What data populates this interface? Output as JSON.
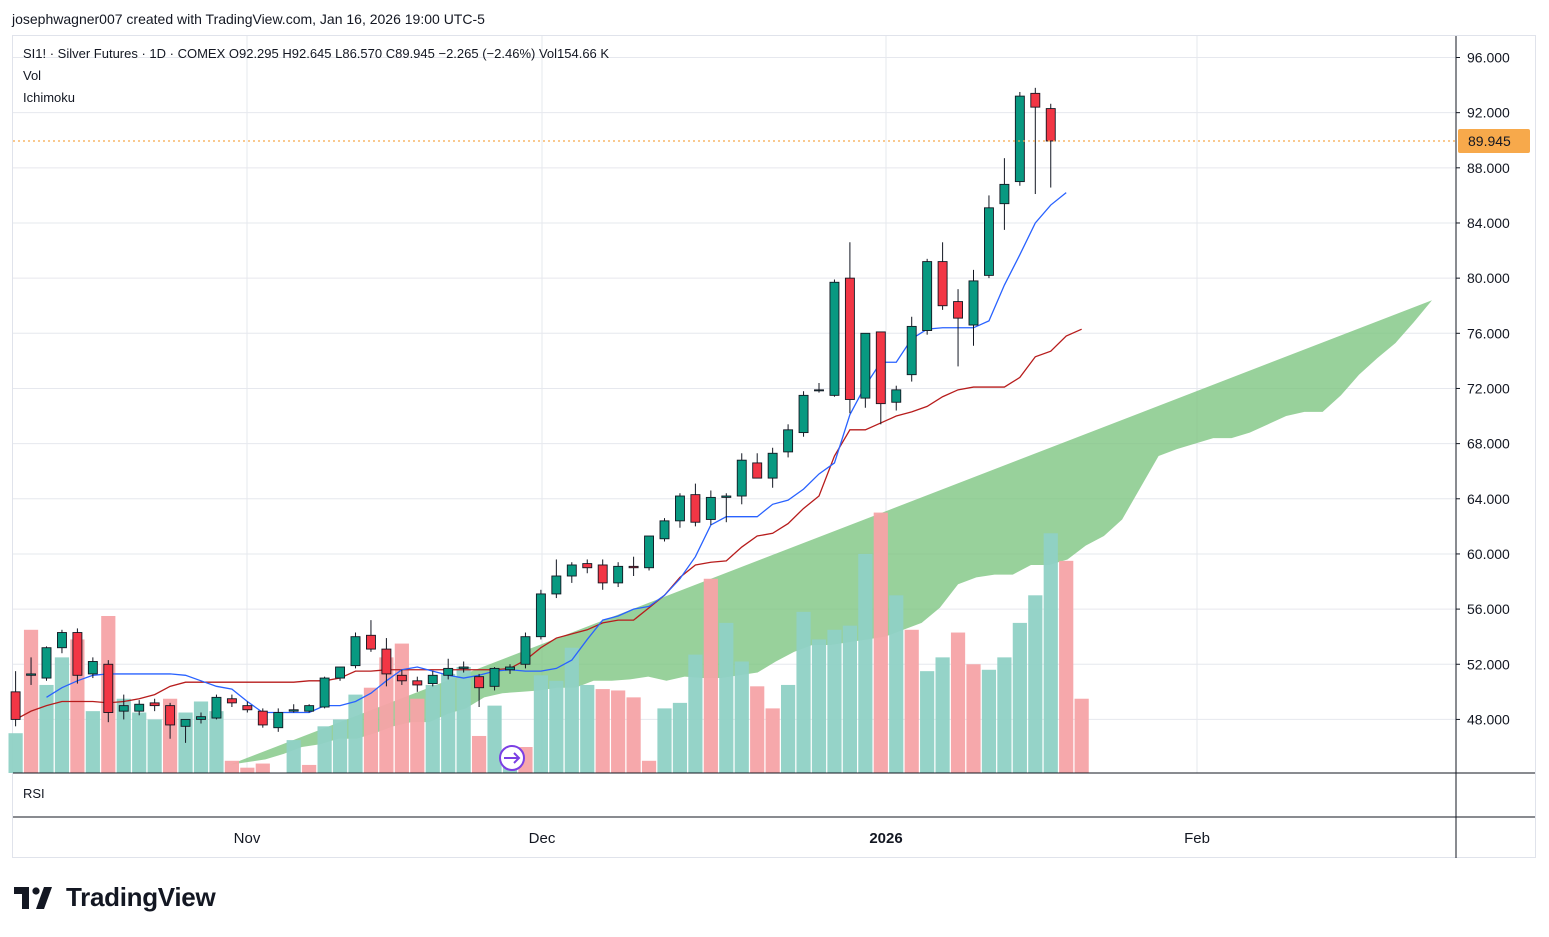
{
  "header": {
    "attribution": "josephwagner007 created with TradingView.com, Jan 16, 2026 19:00 UTC-5"
  },
  "legend": {
    "title_line": "SI1! · Silver Futures · 1D · COMEX  O92.295  H92.645  L86.570  C89.945  −2.265 (−2.46%)  Vol154.66 K",
    "vol": "Vol",
    "ichimoku": "Ichimoku",
    "rsi": "RSI"
  },
  "brand": {
    "name": "TradingView"
  },
  "colors": {
    "up": "#089981",
    "down": "#f23645",
    "vol_up": "#8fd1c5",
    "vol_down": "#f5a3a6",
    "conversion": "#2962ff",
    "base": "#b71c1c",
    "cloud": "#7bc47f",
    "last_price": "#f7a94b"
  },
  "chart_data": {
    "type": "candlestick",
    "symbol": "SI1!",
    "name": "Silver Futures",
    "interval": "1D",
    "exchange": "COMEX",
    "last_price": "89.945",
    "y_ticks": [
      "96.000",
      "92.000",
      "88.000",
      "84.000",
      "80.000",
      "76.000",
      "72.000",
      "68.000",
      "64.000",
      "60.000",
      "56.000",
      "52.000",
      "48.000"
    ],
    "x_ticks": [
      "Nov",
      "Dec",
      "2026",
      "Feb"
    ],
    "ylim": [
      44.5,
      97
    ],
    "candles": [
      [
        50,
        51.5,
        47.5,
        48
      ],
      [
        51.2,
        52.5,
        50.5,
        51.3
      ],
      [
        51,
        53.3,
        50.8,
        53.2
      ],
      [
        53.2,
        54.5,
        52.8,
        54.3
      ],
      [
        54.3,
        54.6,
        50.6,
        51.2
      ],
      [
        51.3,
        52.5,
        51,
        52.2
      ],
      [
        52,
        52.3,
        47.8,
        48.5
      ],
      [
        48.6,
        49.8,
        48,
        49
      ],
      [
        48.6,
        49.4,
        48.3,
        49.1
      ],
      [
        49.2,
        49.5,
        48.6,
        49
      ],
      [
        49,
        49.2,
        46.6,
        47.6
      ],
      [
        47.5,
        48,
        46.3,
        48
      ],
      [
        48,
        48.5,
        47.7,
        48.2
      ],
      [
        48.1,
        49.8,
        48,
        49.6
      ],
      [
        49.5,
        49.8,
        48.9,
        49.2
      ],
      [
        49,
        49.3,
        48.5,
        48.7
      ],
      [
        48.6,
        48.8,
        47.4,
        47.6
      ],
      [
        47.4,
        48.8,
        47.1,
        48.5
      ],
      [
        48.6,
        49.1,
        48.5,
        48.7
      ],
      [
        48.6,
        49.1,
        48.5,
        49
      ],
      [
        48.9,
        51.1,
        48.8,
        51
      ],
      [
        51,
        51.8,
        50.8,
        51.8
      ],
      [
        51.9,
        54.3,
        51.7,
        54
      ],
      [
        54.1,
        55.2,
        52.9,
        53.1
      ],
      [
        53.1,
        53.9,
        50.4,
        51.3
      ],
      [
        51.2,
        51.6,
        50.5,
        50.8
      ],
      [
        50.8,
        51.1,
        50,
        50.5
      ],
      [
        50.6,
        51.5,
        50.4,
        51.2
      ],
      [
        51.2,
        52.4,
        50.9,
        51.7
      ],
      [
        51.7,
        52.2,
        51.4,
        51.8
      ],
      [
        51.1,
        51.3,
        48.9,
        50.3
      ],
      [
        50.4,
        51.8,
        50.1,
        51.7
      ],
      [
        51.6,
        52,
        51.3,
        51.8
      ],
      [
        52,
        54.3,
        51.7,
        54
      ],
      [
        54,
        57.4,
        53.8,
        57.1
      ],
      [
        57.1,
        59.6,
        56.8,
        58.4
      ],
      [
        58.4,
        59.4,
        57.9,
        59.2
      ],
      [
        59.3,
        59.6,
        58.6,
        59
      ],
      [
        59.2,
        59.6,
        57.4,
        57.9
      ],
      [
        57.9,
        59.4,
        57.6,
        59.1
      ],
      [
        59.1,
        59.8,
        58.4,
        59
      ],
      [
        59,
        61.3,
        58.8,
        61.3
      ],
      [
        61.1,
        62.6,
        60.9,
        62.4
      ],
      [
        62.4,
        64.4,
        61.9,
        64.2
      ],
      [
        64.3,
        65.1,
        62,
        62.3
      ],
      [
        62.5,
        64.6,
        62.1,
        64.1
      ],
      [
        64.1,
        64.4,
        62.3,
        64.2
      ],
      [
        64.2,
        67.3,
        63.6,
        66.8
      ],
      [
        66.6,
        67.3,
        65.5,
        65.5
      ],
      [
        65.5,
        67.7,
        64.8,
        67.3
      ],
      [
        67.4,
        69.4,
        67,
        69
      ],
      [
        68.8,
        71.8,
        68.5,
        71.5
      ],
      [
        71.9,
        72.4,
        71.7,
        71.9
      ],
      [
        71.5,
        79.9,
        71.4,
        79.7
      ],
      [
        80,
        82.6,
        70.2,
        71.2
      ],
      [
        71.3,
        76,
        70.6,
        76
      ],
      [
        76.1,
        76.1,
        69.4,
        70.9
      ],
      [
        71,
        72.2,
        70.4,
        71.9
      ],
      [
        73,
        77.2,
        72.5,
        76.5
      ],
      [
        76.2,
        81.4,
        75.9,
        81.2
      ],
      [
        81.2,
        82.6,
        77.7,
        78
      ],
      [
        78.3,
        79.2,
        73.6,
        77.1
      ],
      [
        76.6,
        80.6,
        75.1,
        79.8
      ],
      [
        80.2,
        86,
        80,
        85.1
      ],
      [
        85.4,
        88.7,
        83.5,
        86.8
      ],
      [
        87,
        93.5,
        86.7,
        93.2
      ],
      [
        93.4,
        93.8,
        86.1,
        92.4
      ],
      [
        92.295,
        92.645,
        86.57,
        89.945
      ]
    ],
    "volume": [
      [
        47,
        1
      ],
      [
        54.5,
        0
      ],
      [
        50.5,
        1
      ],
      [
        52.5,
        1
      ],
      [
        53.8,
        0
      ],
      [
        48.6,
        1
      ],
      [
        55.5,
        0
      ],
      [
        49.5,
        1
      ],
      [
        48.5,
        1
      ],
      [
        48,
        1
      ],
      [
        49.5,
        0
      ],
      [
        48.5,
        1
      ],
      [
        49.3,
        1
      ],
      [
        48.6,
        1
      ],
      [
        45,
        0
      ],
      [
        44.5,
        0
      ],
      [
        44.8,
        0
      ],
      [
        44,
        0
      ],
      [
        46.5,
        1
      ],
      [
        44.7,
        0
      ],
      [
        47.5,
        1
      ],
      [
        48,
        1
      ],
      [
        49.8,
        1
      ],
      [
        50.3,
        0
      ],
      [
        52.5,
        0
      ],
      [
        53.5,
        0
      ],
      [
        49.5,
        0
      ],
      [
        50.5,
        1
      ],
      [
        51.3,
        1
      ],
      [
        51.8,
        1
      ],
      [
        46.8,
        0
      ],
      [
        49,
        1
      ],
      [
        45.3,
        1
      ],
      [
        46,
        0
      ],
      [
        51.2,
        1
      ],
      [
        50.8,
        1
      ],
      [
        53.2,
        1
      ],
      [
        50.5,
        1
      ],
      [
        50.2,
        0
      ],
      [
        50.1,
        0
      ],
      [
        49.6,
        0
      ],
      [
        45,
        0
      ],
      [
        48.8,
        1
      ],
      [
        49.2,
        1
      ],
      [
        52.7,
        1
      ],
      [
        58.2,
        0
      ],
      [
        55,
        1
      ],
      [
        52.2,
        1
      ],
      [
        50.4,
        0
      ],
      [
        48.8,
        0
      ],
      [
        50.5,
        1
      ],
      [
        55.8,
        1
      ],
      [
        53.8,
        1
      ],
      [
        54.5,
        1
      ],
      [
        54.8,
        1
      ],
      [
        60,
        1
      ],
      [
        63,
        0
      ],
      [
        57,
        1
      ],
      [
        54.5,
        0
      ],
      [
        51.5,
        1
      ],
      [
        52.5,
        1
      ],
      [
        54.3,
        0
      ],
      [
        52,
        0
      ],
      [
        51.6,
        1
      ],
      [
        52.5,
        1
      ],
      [
        55,
        1
      ],
      [
        57,
        1
      ],
      [
        61.5,
        1
      ],
      [
        59.5,
        0
      ],
      [
        49.5,
        0
      ]
    ],
    "ichimoku": {
      "conversion_line": [
        49.6,
        50.3,
        50.8,
        51.2,
        51.3,
        51.3,
        51.3,
        51.3,
        51.3,
        51.2,
        50.8,
        50.4,
        50.2,
        49.3,
        48.5,
        48.5,
        48.5,
        48.5,
        49,
        49,
        49.3,
        49.9,
        50.8,
        51.6,
        51.8,
        51.5,
        51.2,
        51,
        51.2,
        51.5,
        51.6,
        51.5,
        51.5,
        51.7,
        52.3,
        53.8,
        55.2,
        55.5,
        56,
        56.2,
        57,
        58.2,
        59.8,
        62.1,
        62.7,
        62.7,
        62.7,
        63.6,
        63.9,
        64.7,
        65.8,
        66.6,
        70.1,
        72.2,
        73.9,
        73.9,
        75.6,
        76.3,
        76.4,
        76.4,
        76.4,
        76.9,
        79.5,
        81.7,
        84,
        85.3,
        86.2
      ],
      "base_line": [
        48,
        48.6,
        49,
        49.3,
        49.3,
        49.3,
        49.2,
        49.3,
        49.5,
        49.8,
        50.4,
        50.7,
        50.7,
        50.7,
        50.7,
        50.7,
        50.7,
        50.7,
        50.7,
        50.8,
        50.8,
        51,
        51.5,
        51.5,
        51.6,
        51.6,
        51.6,
        51.6,
        51.6,
        51.6,
        51.6,
        51.6,
        51.7,
        52.3,
        53.2,
        53.9,
        54.2,
        54.5,
        55,
        55.2,
        55.2,
        56.1,
        57,
        58.3,
        59.2,
        59.4,
        59.5,
        60.5,
        61.3,
        61.5,
        62.2,
        63.3,
        64.2,
        67.1,
        69,
        69,
        69.5,
        70,
        70.3,
        70.7,
        71.4,
        71.9,
        72.1,
        72.1,
        72.1,
        72.8,
        74.3,
        74.7,
        75.8,
        76.3
      ],
      "cloud_upper": [
        44.7,
        44.9,
        45.1,
        45.5,
        46,
        46.2,
        46.6,
        46.6,
        47,
        47.5,
        47.8,
        47.8,
        48.4,
        48.8,
        49.6,
        49.9,
        50,
        50.1,
        50.3,
        50.3,
        50.8,
        50.8,
        50.9,
        51.1,
        50.8,
        51.1,
        51,
        51,
        51.2,
        51.4,
        52.2,
        52.9,
        53.4,
        53.4,
        53.6,
        53.8,
        54,
        54.5,
        55,
        56.1,
        57.8,
        58.3,
        58.5,
        58.5,
        59.2,
        59.2,
        59.6,
        60.6,
        61.3,
        62.5,
        64.8,
        67.1,
        67.6,
        68,
        68.4,
        68.4,
        68.8,
        69.4,
        70,
        70.3,
        70.3,
        71.5,
        73,
        74.2,
        75.3,
        76.8,
        78.4
      ],
      "cloud_lower": [
        44.5,
        44.5,
        44.5,
        44.5,
        44.5,
        44.5,
        44.5,
        44.8,
        45,
        45.2,
        45.5,
        45.8,
        46,
        46.5,
        47,
        47.5,
        47.8,
        47.8,
        47.8,
        47.8,
        47.8,
        47.8,
        47.8,
        47.8,
        47.8,
        48.1,
        48.3,
        48.7,
        49,
        49,
        49.1,
        49.5,
        49.5,
        49.5,
        49.6,
        49.7,
        49.9,
        50,
        50.1,
        50.2,
        50.2,
        50.3,
        50.9,
        52.2,
        53.6,
        53.7,
        53.8,
        53.8,
        53.8,
        54.1,
        54.6,
        55.1,
        55.1,
        55.4,
        56.2,
        56.9,
        57.5,
        58,
        62,
        63.8,
        63.8,
        63.8,
        63.8,
        63.8,
        63.8,
        63.8,
        63.8,
        65.4,
        67.8,
        69.5,
        69.5
      ]
    }
  }
}
